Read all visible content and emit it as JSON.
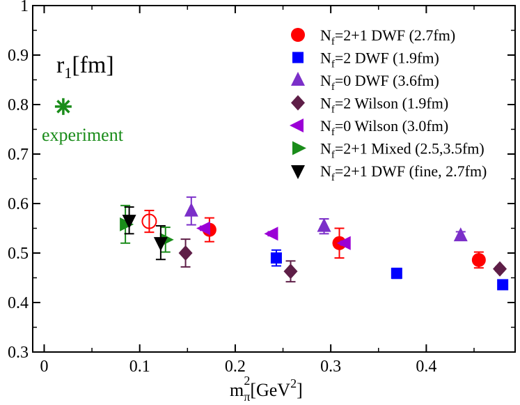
{
  "chart_data": {
    "type": "scatter",
    "title": "",
    "plot_label": "r_1[fm]",
    "xlabel": "m_π^2[GeV^2]",
    "ylabel": "",
    "xlim": [
      -0.012,
      0.493
    ],
    "ylim": [
      0.3,
      1.0
    ],
    "x_ticks": [
      0,
      0.1,
      0.2,
      0.3,
      0.4
    ],
    "x_tick_labels": [
      "0",
      "0.1",
      "0.2",
      "0.3",
      "0.4"
    ],
    "y_ticks": [
      0.3,
      0.4,
      0.5,
      0.6,
      0.7,
      0.8,
      0.9,
      1.0
    ],
    "y_tick_labels": [
      "0.3",
      "0.4",
      "0.5",
      "0.6",
      "0.7",
      "0.8",
      "0.9",
      "1"
    ],
    "grid": false,
    "legend_position": "top-right",
    "annotation": {
      "text": "experiment",
      "point": {
        "x": 0.02,
        "y": 0.796
      },
      "color": "#1a8c1a"
    },
    "series": [
      {
        "name": "N_f=2+1 DWF (2.7fm)",
        "marker": "circle",
        "color": "#ff0000",
        "points": [
          {
            "x": 0.11,
            "y": 0.564,
            "err": 0.022,
            "open": true
          },
          {
            "x": 0.173,
            "y": 0.547,
            "err": 0.024
          },
          {
            "x": 0.309,
            "y": 0.52,
            "err": 0.03
          },
          {
            "x": 0.455,
            "y": 0.486,
            "err": 0.016
          }
        ]
      },
      {
        "name": "N_f=2 DWF (1.9fm)",
        "marker": "square",
        "color": "#0000ff",
        "points": [
          {
            "x": 0.243,
            "y": 0.49,
            "err": 0.016
          },
          {
            "x": 0.369,
            "y": 0.459,
            "err": 0.01
          },
          {
            "x": 0.48,
            "y": 0.436,
            "err": 0.008
          }
        ]
      },
      {
        "name": "N_f=0 DWF (3.6fm)",
        "marker": "triangle-up",
        "color": "#7b2fc9",
        "points": [
          {
            "x": 0.154,
            "y": 0.585,
            "err": 0.028
          },
          {
            "x": 0.293,
            "y": 0.554,
            "err": 0.015
          },
          {
            "x": 0.436,
            "y": 0.535,
            "err": 0.008
          }
        ]
      },
      {
        "name": "N_f=2 Wilson (1.9fm)",
        "marker": "diamond",
        "color": "#5e1e47",
        "points": [
          {
            "x": 0.148,
            "y": 0.5,
            "err": 0.028
          },
          {
            "x": 0.258,
            "y": 0.463,
            "err": 0.021
          },
          {
            "x": 0.477,
            "y": 0.468,
            "err": 0.004
          }
        ]
      },
      {
        "name": "N_f=0 Wilson (3.0fm)",
        "marker": "triangle-left",
        "color": "#9b00d6",
        "points": [
          {
            "x": 0.168,
            "y": 0.55,
            "err": 0.004
          },
          {
            "x": 0.239,
            "y": 0.539,
            "err": 0.004
          },
          {
            "x": 0.315,
            "y": 0.52,
            "err": 0.004
          }
        ]
      },
      {
        "name": "N_f=2+1 Mixed (2.5,3.5fm)",
        "marker": "triangle-right",
        "color": "#1a8c1a",
        "points": [
          {
            "x": 0.085,
            "y": 0.558,
            "err": 0.038
          },
          {
            "x": 0.127,
            "y": 0.527,
            "err": 0.025
          }
        ]
      },
      {
        "name": "N_f=2+1 DWF (fine, 2.7fm)",
        "marker": "triangle-down",
        "color": "#000000",
        "points": [
          {
            "x": 0.089,
            "y": 0.566,
            "err": 0.027
          },
          {
            "x": 0.122,
            "y": 0.521,
            "err": 0.034
          }
        ]
      }
    ]
  }
}
